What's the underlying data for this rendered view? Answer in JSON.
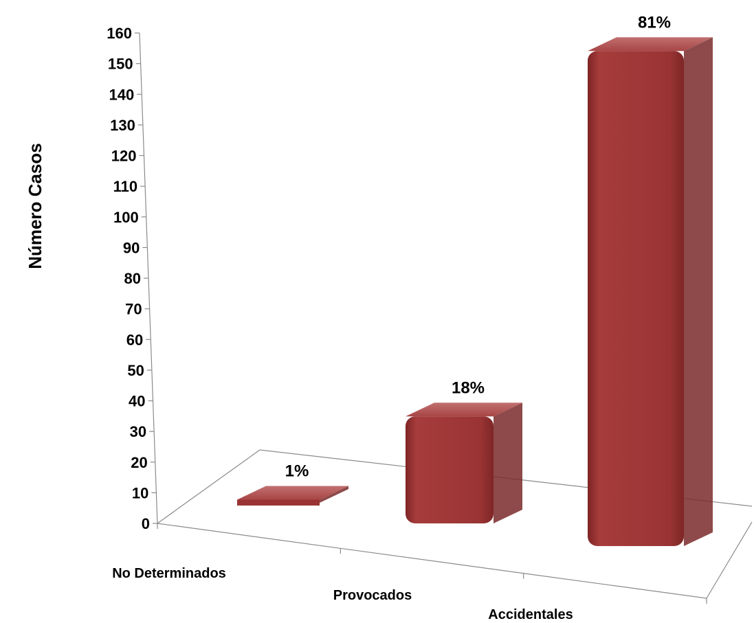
{
  "chart_data": {
    "type": "bar",
    "categories": [
      "No Determinados",
      "Provocados",
      "Accidentales"
    ],
    "values": [
      1,
      35,
      155
    ],
    "data_labels": [
      "1%",
      "18%",
      "81%"
    ],
    "ylabel": "Número  Casos",
    "xlabel": "",
    "ylim": [
      0,
      160
    ],
    "yticks": [
      0,
      10,
      20,
      30,
      40,
      50,
      60,
      70,
      80,
      90,
      100,
      110,
      120,
      130,
      140,
      150,
      160
    ],
    "grid": false,
    "legend": "none",
    "bar_color": "#9b3535"
  }
}
